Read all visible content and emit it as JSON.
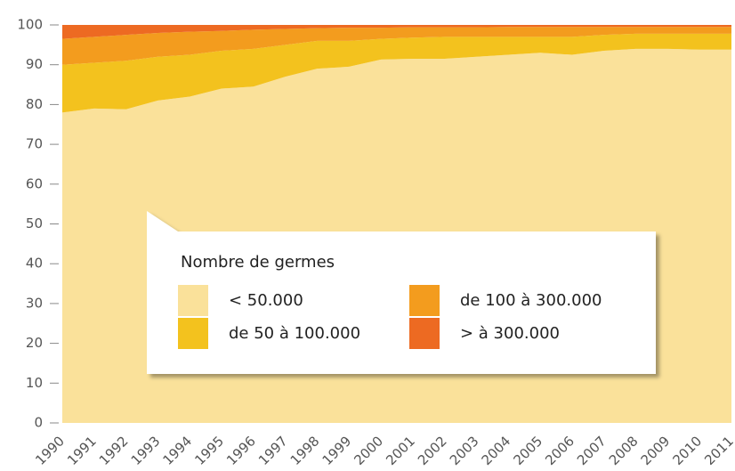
{
  "chart_data": {
    "type": "stacked_area",
    "legend_title": "Nombre de germes",
    "categories": [
      "1990",
      "1991",
      "1992",
      "1993",
      "1994",
      "1995",
      "1996",
      "1997",
      "1998",
      "1999",
      "2000",
      "2001",
      "2002",
      "2003",
      "2004",
      "2005",
      "2006",
      "2007",
      "2008",
      "2009",
      "2010",
      "2011"
    ],
    "series": [
      {
        "name": "< 50.000",
        "color": "#fae19a",
        "values": [
          78,
          79,
          78.8,
          81,
          82,
          84,
          84.5,
          87,
          89,
          89.5,
          91.3,
          91.5,
          91.5,
          92,
          92.5,
          93,
          92.5,
          93.5,
          94,
          94,
          93.8,
          93.8
        ]
      },
      {
        "name": "de 50 à 100.000",
        "color": "#f3c21e",
        "values": [
          12,
          11.5,
          12.2,
          11,
          10.5,
          9.5,
          9.5,
          8,
          7,
          6.5,
          5.2,
          5.3,
          5.5,
          5,
          4.5,
          4,
          4.5,
          4,
          3.8,
          3.8,
          4,
          4
        ]
      },
      {
        "name": "de 100 à 300.000",
        "color": "#f39c1e",
        "values": [
          6.5,
          6.5,
          6.5,
          6,
          5.8,
          5,
          4.8,
          4,
          3.2,
          3.3,
          2.8,
          2.6,
          2.4,
          2.4,
          2.5,
          2.5,
          2.5,
          2,
          1.7,
          1.7,
          1.7,
          1.7
        ]
      },
      {
        "name": "> à 300.000",
        "color": "#ed6a22",
        "values": [
          3.5,
          3,
          2.5,
          2,
          1.7,
          1.5,
          1.2,
          1,
          0.8,
          0.7,
          0.7,
          0.6,
          0.6,
          0.6,
          0.5,
          0.5,
          0.5,
          0.5,
          0.5,
          0.5,
          0.5,
          0.5
        ]
      }
    ],
    "ylim": [
      0,
      100
    ],
    "yticks": [
      0,
      10,
      20,
      30,
      40,
      50,
      60,
      70,
      80,
      90,
      100
    ]
  }
}
